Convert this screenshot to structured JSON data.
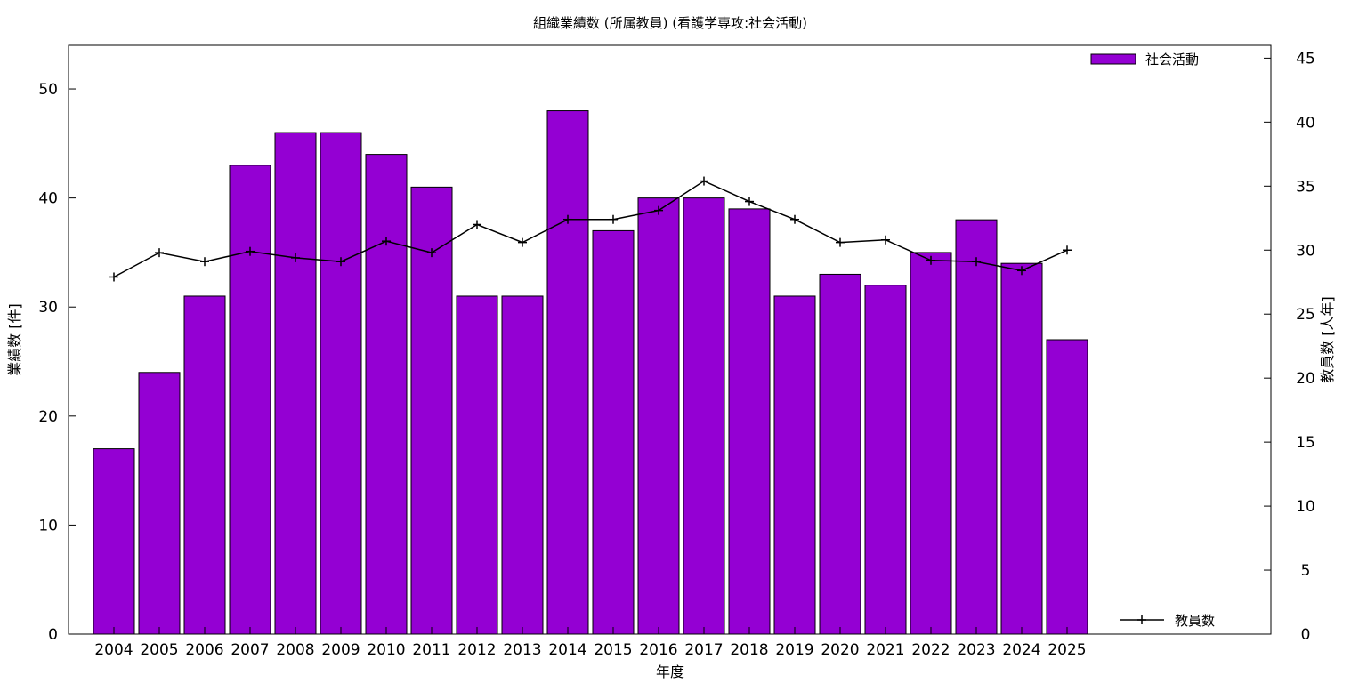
{
  "chart_data": {
    "type": "bar",
    "title": "組織業績数 (所属教員) (看護学専攻:社会活動)",
    "xlabel": "年度",
    "ylabel": "業績数 [件]",
    "y2label": "教員数 [人年]",
    "ylim": [
      0,
      54
    ],
    "y2lim": [
      0,
      46
    ],
    "yticks": [
      0,
      10,
      20,
      30,
      40,
      50
    ],
    "y2ticks": [
      0,
      5,
      10,
      15,
      20,
      25,
      30,
      35,
      40,
      45
    ],
    "categories": [
      "2004",
      "2005",
      "2006",
      "2007",
      "2008",
      "2009",
      "2010",
      "2011",
      "2012",
      "2013",
      "2014",
      "2015",
      "2016",
      "2017",
      "2018",
      "2019",
      "2020",
      "2021",
      "2022",
      "2023",
      "2024",
      "2025"
    ],
    "series": [
      {
        "name": "社会活動",
        "type": "bar",
        "axis": "left",
        "color": "#9400d3",
        "values": [
          17,
          24,
          31,
          43,
          46,
          46,
          44,
          41,
          31,
          31,
          48,
          37,
          40,
          40,
          39,
          31,
          33,
          32,
          35,
          38,
          34,
          27
        ]
      },
      {
        "name": "教員数",
        "type": "line",
        "axis": "right",
        "color": "#000000",
        "values": [
          27.9,
          29.8,
          29.1,
          29.9,
          29.4,
          29.1,
          30.7,
          29.8,
          32.0,
          30.6,
          32.4,
          32.4,
          33.1,
          35.4,
          33.8,
          32.4,
          30.6,
          30.8,
          29.2,
          29.1,
          28.4,
          30.0
        ]
      }
    ],
    "legend_placement": "top-right (bars), bottom-right (line)",
    "grid": false
  }
}
